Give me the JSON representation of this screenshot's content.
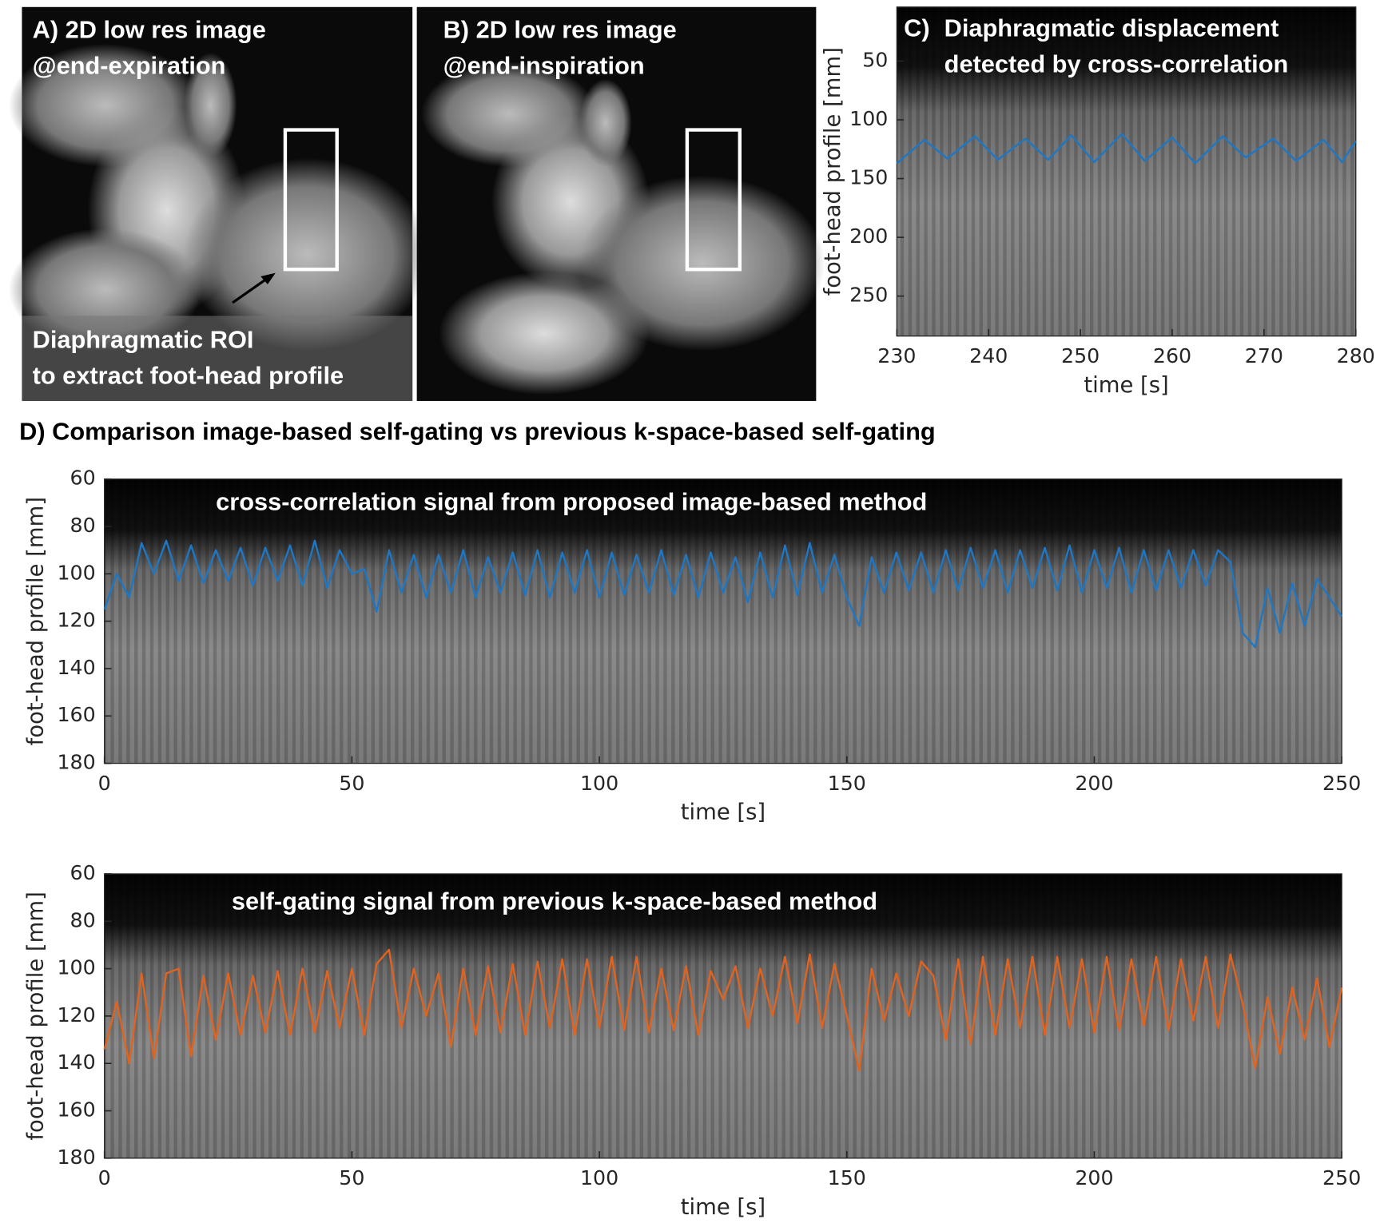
{
  "images": [
    {
      "label_line1": "A) 2D low res image",
      "label_line2": "@end-expiration",
      "roi_text_line1": "Diaphragmatic ROI",
      "roi_text_line2": "to extract foot-head profile"
    },
    {
      "label_line1": "B) 2D low res image",
      "label_line2": "@end-inspiration"
    }
  ],
  "section_title": "D) Comparison image-based self-gating vs previous k-space-based self-gating",
  "chart_data": [
    {
      "type": "line",
      "panel_label": "C)",
      "annotation": [
        "Diaphragmatic displacement",
        "detected by cross-correlation"
      ],
      "xlabel": "time [s]",
      "ylabel": "foot-head profile [mm]",
      "x": [
        230,
        233,
        235.5,
        238.5,
        241,
        244,
        246.5,
        249,
        251.5,
        254.5,
        257,
        260,
        262.5,
        265.5,
        268,
        271,
        273.5,
        276.5,
        278.5,
        280
      ],
      "series": [
        {
          "color": "#1f77c4",
          "values": [
            137,
            117,
            133,
            114,
            134,
            116,
            134,
            113,
            136,
            112,
            135,
            115,
            137,
            114,
            132,
            116,
            135,
            117,
            136,
            118
          ]
        }
      ],
      "xlim": [
        230,
        280
      ],
      "ylim": [
        4,
        284
      ],
      "y_reversed": true,
      "xticks": [
        230,
        240,
        250,
        260,
        270,
        280
      ],
      "yticks": [
        50,
        100,
        150,
        200,
        250
      ]
    },
    {
      "type": "line",
      "annotation": [
        "cross-correlation signal from proposed image-based method"
      ],
      "xlabel": "time [s]",
      "ylabel": "foot-head profile [mm]",
      "x": [
        0,
        2.5,
        5,
        7.5,
        10,
        12.5,
        15,
        17.5,
        20,
        22.5,
        25,
        27.5,
        30,
        32.5,
        35,
        37.5,
        40,
        42.5,
        45,
        47.5,
        50,
        52.5,
        55,
        57.5,
        60,
        62.5,
        65,
        67.5,
        70,
        72.5,
        75,
        77.5,
        80,
        82.5,
        85,
        87.5,
        90,
        92.5,
        95,
        97.5,
        100,
        102.5,
        105,
        107.5,
        110,
        112.5,
        115,
        117.5,
        120,
        122.5,
        125,
        127.5,
        130,
        132.5,
        135,
        137.5,
        140,
        142.5,
        145,
        147.5,
        150,
        152.5,
        155,
        157.5,
        160,
        162.5,
        165,
        167.5,
        170,
        172.5,
        175,
        177.5,
        180,
        182.5,
        185,
        187.5,
        190,
        192.5,
        195,
        197.5,
        200,
        202.5,
        205,
        207.5,
        210,
        212.5,
        215,
        217.5,
        220,
        222.5,
        225,
        227.5,
        230,
        232.5,
        235,
        237.5,
        240,
        242.5,
        245,
        247.5,
        250
      ],
      "series": [
        {
          "color": "#1f77c4",
          "values": [
            115,
            100,
            110,
            87,
            100,
            86,
            103,
            88,
            104,
            90,
            103,
            89,
            105,
            89,
            103,
            88,
            105,
            86,
            106,
            90,
            100,
            98,
            116,
            90,
            108,
            92,
            110,
            92,
            108,
            90,
            110,
            93,
            108,
            91,
            109,
            90,
            110,
            91,
            108,
            90,
            110,
            91,
            109,
            92,
            108,
            90,
            109,
            92,
            110,
            91,
            108,
            93,
            112,
            91,
            110,
            88,
            109,
            87,
            108,
            92,
            110,
            122,
            93,
            108,
            91,
            107,
            91,
            108,
            90,
            107,
            89,
            106,
            90,
            108,
            90,
            106,
            89,
            107,
            88,
            108,
            90,
            106,
            89,
            108,
            90,
            107,
            90,
            106,
            90,
            105,
            90,
            95,
            125,
            131,
            106,
            125,
            104,
            122,
            102,
            110,
            118
          ]
        }
      ],
      "xlim": [
        0,
        250
      ],
      "ylim": [
        60,
        180
      ],
      "y_reversed": true,
      "xticks": [
        0,
        50,
        100,
        150,
        200,
        250
      ],
      "yticks": [
        60,
        80,
        100,
        120,
        140,
        160,
        180
      ]
    },
    {
      "type": "line",
      "annotation": [
        "self-gating signal from previous k-space-based method"
      ],
      "xlabel": "time [s]",
      "ylabel": "foot-head profile [mm]",
      "x": [
        0,
        2.5,
        5,
        7.5,
        10,
        12.5,
        15,
        17.5,
        20,
        22.5,
        25,
        27.5,
        30,
        32.5,
        35,
        37.5,
        40,
        42.5,
        45,
        47.5,
        50,
        52.5,
        55,
        57.5,
        60,
        62.5,
        65,
        67.5,
        70,
        72.5,
        75,
        77.5,
        80,
        82.5,
        85,
        87.5,
        90,
        92.5,
        95,
        97.5,
        100,
        102.5,
        105,
        107.5,
        110,
        112.5,
        115,
        117.5,
        120,
        122.5,
        125,
        127.5,
        130,
        132.5,
        135,
        137.5,
        140,
        142.5,
        145,
        147.5,
        150,
        152.5,
        155,
        157.5,
        160,
        162.5,
        165,
        167.5,
        170,
        172.5,
        175,
        177.5,
        180,
        182.5,
        185,
        187.5,
        190,
        192.5,
        195,
        197.5,
        200,
        202.5,
        205,
        207.5,
        210,
        212.5,
        215,
        217.5,
        220,
        222.5,
        225,
        227.5,
        230,
        232.5,
        235,
        237.5,
        240,
        242.5,
        245,
        247.5,
        250
      ],
      "series": [
        {
          "color": "#e0631f",
          "values": [
            134,
            114,
            140,
            102,
            138,
            102,
            100,
            137,
            103,
            130,
            102,
            128,
            103,
            127,
            101,
            128,
            100,
            127,
            101,
            125,
            100,
            128,
            98,
            92,
            125,
            100,
            120,
            102,
            133,
            100,
            128,
            99,
            127,
            98,
            128,
            97,
            125,
            96,
            128,
            96,
            125,
            95,
            126,
            95,
            127,
            100,
            126,
            99,
            128,
            101,
            113,
            99,
            125,
            100,
            120,
            95,
            123,
            94,
            125,
            98,
            120,
            143,
            100,
            122,
            102,
            120,
            97,
            103,
            130,
            96,
            132,
            95,
            128,
            96,
            125,
            95,
            128,
            95,
            125,
            96,
            127,
            95,
            126,
            96,
            124,
            95,
            126,
            96,
            122,
            95,
            125,
            94,
            115,
            142,
            112,
            136,
            108,
            130,
            104,
            133,
            108
          ]
        }
      ],
      "xlim": [
        0,
        250
      ],
      "ylim": [
        60,
        180
      ],
      "y_reversed": true,
      "xticks": [
        0,
        50,
        100,
        150,
        200,
        250
      ],
      "yticks": [
        60,
        80,
        100,
        120,
        140,
        160,
        180
      ]
    }
  ]
}
